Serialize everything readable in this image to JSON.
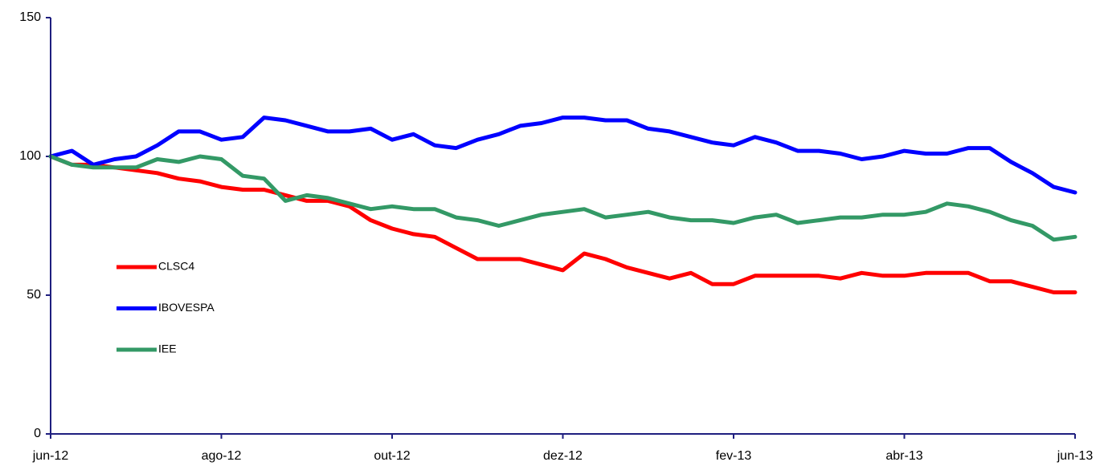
{
  "chart_data": {
    "type": "line",
    "categories": [
      "jun-12",
      null,
      null,
      null,
      null,
      null,
      null,
      null,
      "ago-12",
      null,
      null,
      null,
      null,
      null,
      null,
      null,
      "out-12",
      null,
      null,
      null,
      null,
      null,
      null,
      null,
      "dez-12",
      null,
      null,
      null,
      null,
      null,
      null,
      null,
      "fev-13",
      null,
      null,
      null,
      null,
      null,
      null,
      null,
      "abr-13",
      null,
      null,
      null,
      null,
      null,
      null,
      null,
      "jun-13"
    ],
    "series": [
      {
        "name": "CLSC4",
        "color": "#ff0000",
        "values": [
          100,
          97,
          97,
          96,
          95,
          94,
          92,
          91,
          89,
          88,
          88,
          86,
          84,
          84,
          82,
          77,
          74,
          72,
          71,
          67,
          63,
          63,
          63,
          61,
          59,
          65,
          63,
          60,
          58,
          56,
          58,
          54,
          54,
          57,
          57,
          57,
          57,
          56,
          58,
          57,
          57,
          58,
          58,
          58,
          55,
          55,
          53,
          51,
          51
        ]
      },
      {
        "name": "IBOVESPA",
        "color": "#0000ff",
        "values": [
          100,
          102,
          97,
          99,
          100,
          104,
          109,
          109,
          106,
          107,
          114,
          113,
          111,
          109,
          109,
          110,
          106,
          108,
          104,
          103,
          106,
          108,
          111,
          112,
          114,
          114,
          113,
          113,
          110,
          109,
          107,
          105,
          104,
          107,
          105,
          102,
          102,
          101,
          99,
          100,
          102,
          101,
          101,
          103,
          103,
          98,
          94,
          89,
          87
        ]
      },
      {
        "name": "IEE",
        "color": "#339966",
        "values": [
          100,
          97,
          96,
          96,
          96,
          99,
          98,
          100,
          99,
          93,
          92,
          84,
          86,
          85,
          83,
          81,
          82,
          81,
          81,
          78,
          77,
          75,
          77,
          79,
          80,
          81,
          78,
          79,
          80,
          78,
          77,
          77,
          76,
          78,
          79,
          76,
          77,
          78,
          78,
          79,
          79,
          80,
          83,
          82,
          80,
          77,
          75,
          70,
          71
        ]
      }
    ],
    "ylim": [
      0,
      150
    ],
    "yticks": [
      0,
      50,
      100,
      150
    ],
    "axis_color": "#1f1f7f",
    "legend": "left"
  }
}
